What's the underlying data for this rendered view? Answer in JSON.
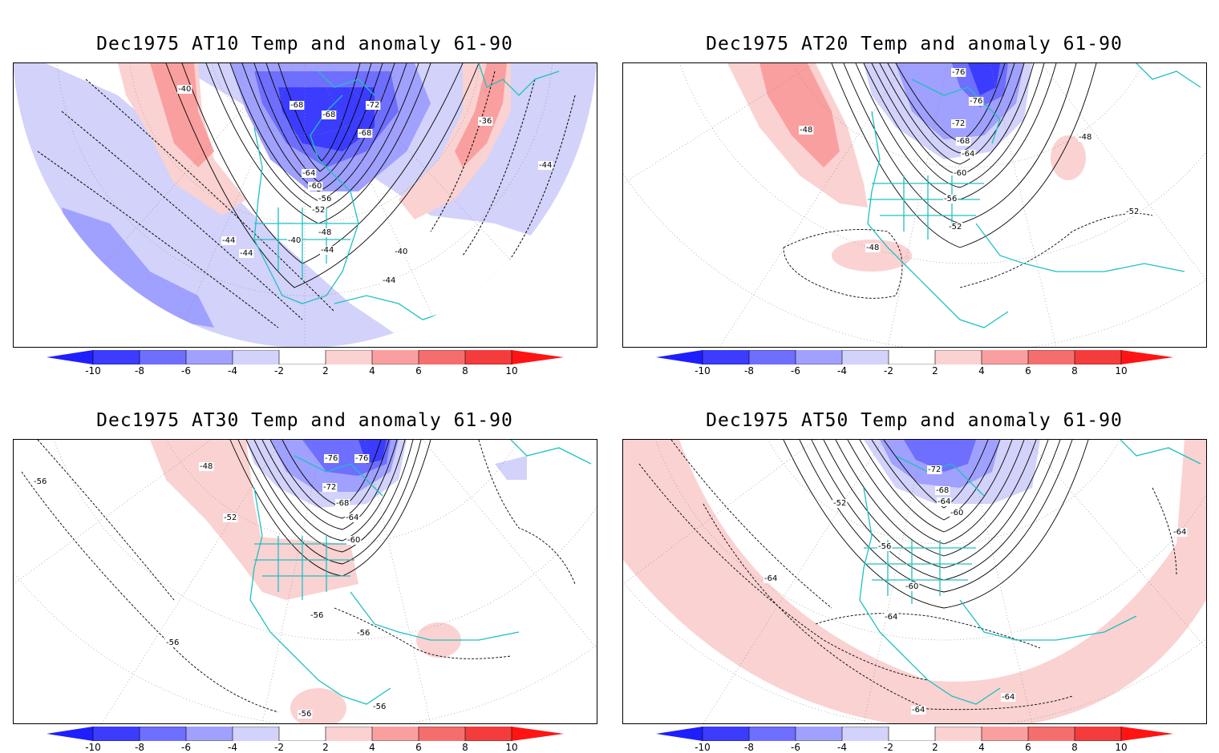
{
  "panels": [
    {
      "title": "Dec1975 AT10 Temp and anomaly 61-90",
      "labels": [
        "-40",
        "-68",
        "-72",
        "-68",
        "-68",
        "-36",
        "-64",
        "-60",
        "-56",
        "-52",
        "-48",
        "-44",
        "-40",
        "-44",
        "-40",
        "-44",
        "-44",
        "-44"
      ]
    },
    {
      "title": "Dec1975 AT20 Temp and anomaly 61-90",
      "labels": [
        "-76",
        "-76",
        "-72",
        "-68",
        "-64",
        "-60",
        "-56",
        "-52",
        "-48",
        "-48",
        "-52",
        "-48"
      ]
    },
    {
      "title": "Dec1975 AT30 Temp and anomaly 61-90",
      "labels": [
        "-56",
        "-48",
        "-76",
        "-76",
        "-72",
        "-68",
        "-64",
        "-60",
        "-52",
        "-56",
        "-56",
        "-56",
        "-56",
        "-56"
      ]
    },
    {
      "title": "Dec1975 AT50 Temp and anomaly 61-90",
      "labels": [
        "-72",
        "-68",
        "-64",
        "-60",
        "-52",
        "-56",
        "-60",
        "-64",
        "-64",
        "-64",
        "-64",
        "-64"
      ]
    }
  ],
  "colorbar": {
    "ticks": [
      "-10",
      "-8",
      "-6",
      "-4",
      "-2",
      "2",
      "4",
      "6",
      "8",
      "10"
    ],
    "colors": [
      "#1e1eff",
      "#3c3cff",
      "#6e6eff",
      "#a0a0ff",
      "#d2d2fa",
      "#ffffff",
      "#fad2d2",
      "#fa9f9f",
      "#f56e6e",
      "#f53c3c",
      "#ff1414"
    ]
  },
  "colors": {
    "coast": "#20c0c0",
    "neg_light": "#d2d2fa",
    "neg_mid": "#a0a0ff",
    "neg_dark": "#6e6eff",
    "neg_darkest": "#3c3cff",
    "pos_light": "#fad2d2",
    "pos_mid": "#fa9f9f"
  }
}
